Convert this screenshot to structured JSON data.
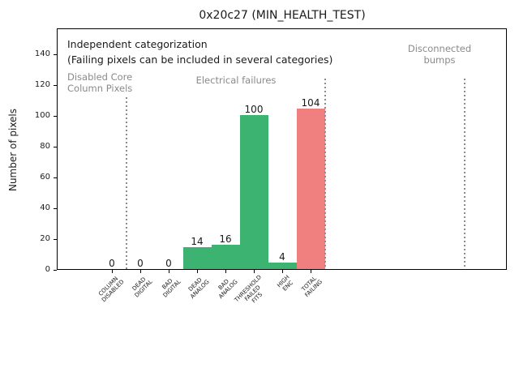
{
  "figure": {
    "title": "0x20c27 (MIN_HEALTH_TEST)",
    "ylabel": "Number of pixels"
  },
  "annotations": {
    "independent": "Independent categorization",
    "failing_note": "(Failing pixels can be included in several categories)",
    "section_disabled": "Disabled Core\nColumn Pixels",
    "section_electrical": "Electrical failures",
    "section_disconnected": "Disconnected\nbumps"
  },
  "chart_data": {
    "type": "bar",
    "title": "0x20c27 (MIN_HEALTH_TEST)",
    "xlabel": "",
    "ylabel": "Number of pixels",
    "categories": [
      "COLUMN\nDISABLED",
      "DEAD\nDIGITAL",
      "BAD\nDIGITAL",
      "DEAD\nANALOG",
      "BAD\nANALOG",
      "THRESHOLD\nFAILED\nFITS",
      "HIGH\nENC",
      "TOTAL\nFAILING"
    ],
    "values": [
      0,
      0,
      0,
      14,
      16,
      100,
      4,
      104
    ],
    "bar_value_labels": [
      "0",
      "0",
      "0",
      "14",
      "16",
      "100",
      "4",
      "104"
    ],
    "bar_colors": [
      "#3cb371",
      "#3cb371",
      "#3cb371",
      "#3cb371",
      "#3cb371",
      "#3cb371",
      "#3cb371",
      "#f08080"
    ],
    "yticks": [
      0,
      20,
      40,
      60,
      80,
      100,
      120,
      140
    ],
    "ylim": [
      0,
      157
    ],
    "grid": false,
    "legend": null,
    "section_dividers_x": [
      0.5,
      7.5,
      12.43
    ],
    "sections": [
      {
        "label": "Disabled Core\nColumn Pixels",
        "color": "#8a8a8a"
      },
      {
        "label": "Electrical failures",
        "color": "#8a8a8a"
      },
      {
        "label": "Disconnected\nbumps",
        "color": "#8a8a8a"
      }
    ],
    "annotation_lines": [
      "Independent categorization",
      "(Failing pixels can be included in several categories)"
    ]
  },
  "colors": {
    "bar_green": "#3cb371",
    "bar_red": "#f08080",
    "section_text_gray": "#8a8a8a",
    "divider_gray": "#8c8c8c",
    "text": "#1a1a1a",
    "background": "#ffffff"
  }
}
